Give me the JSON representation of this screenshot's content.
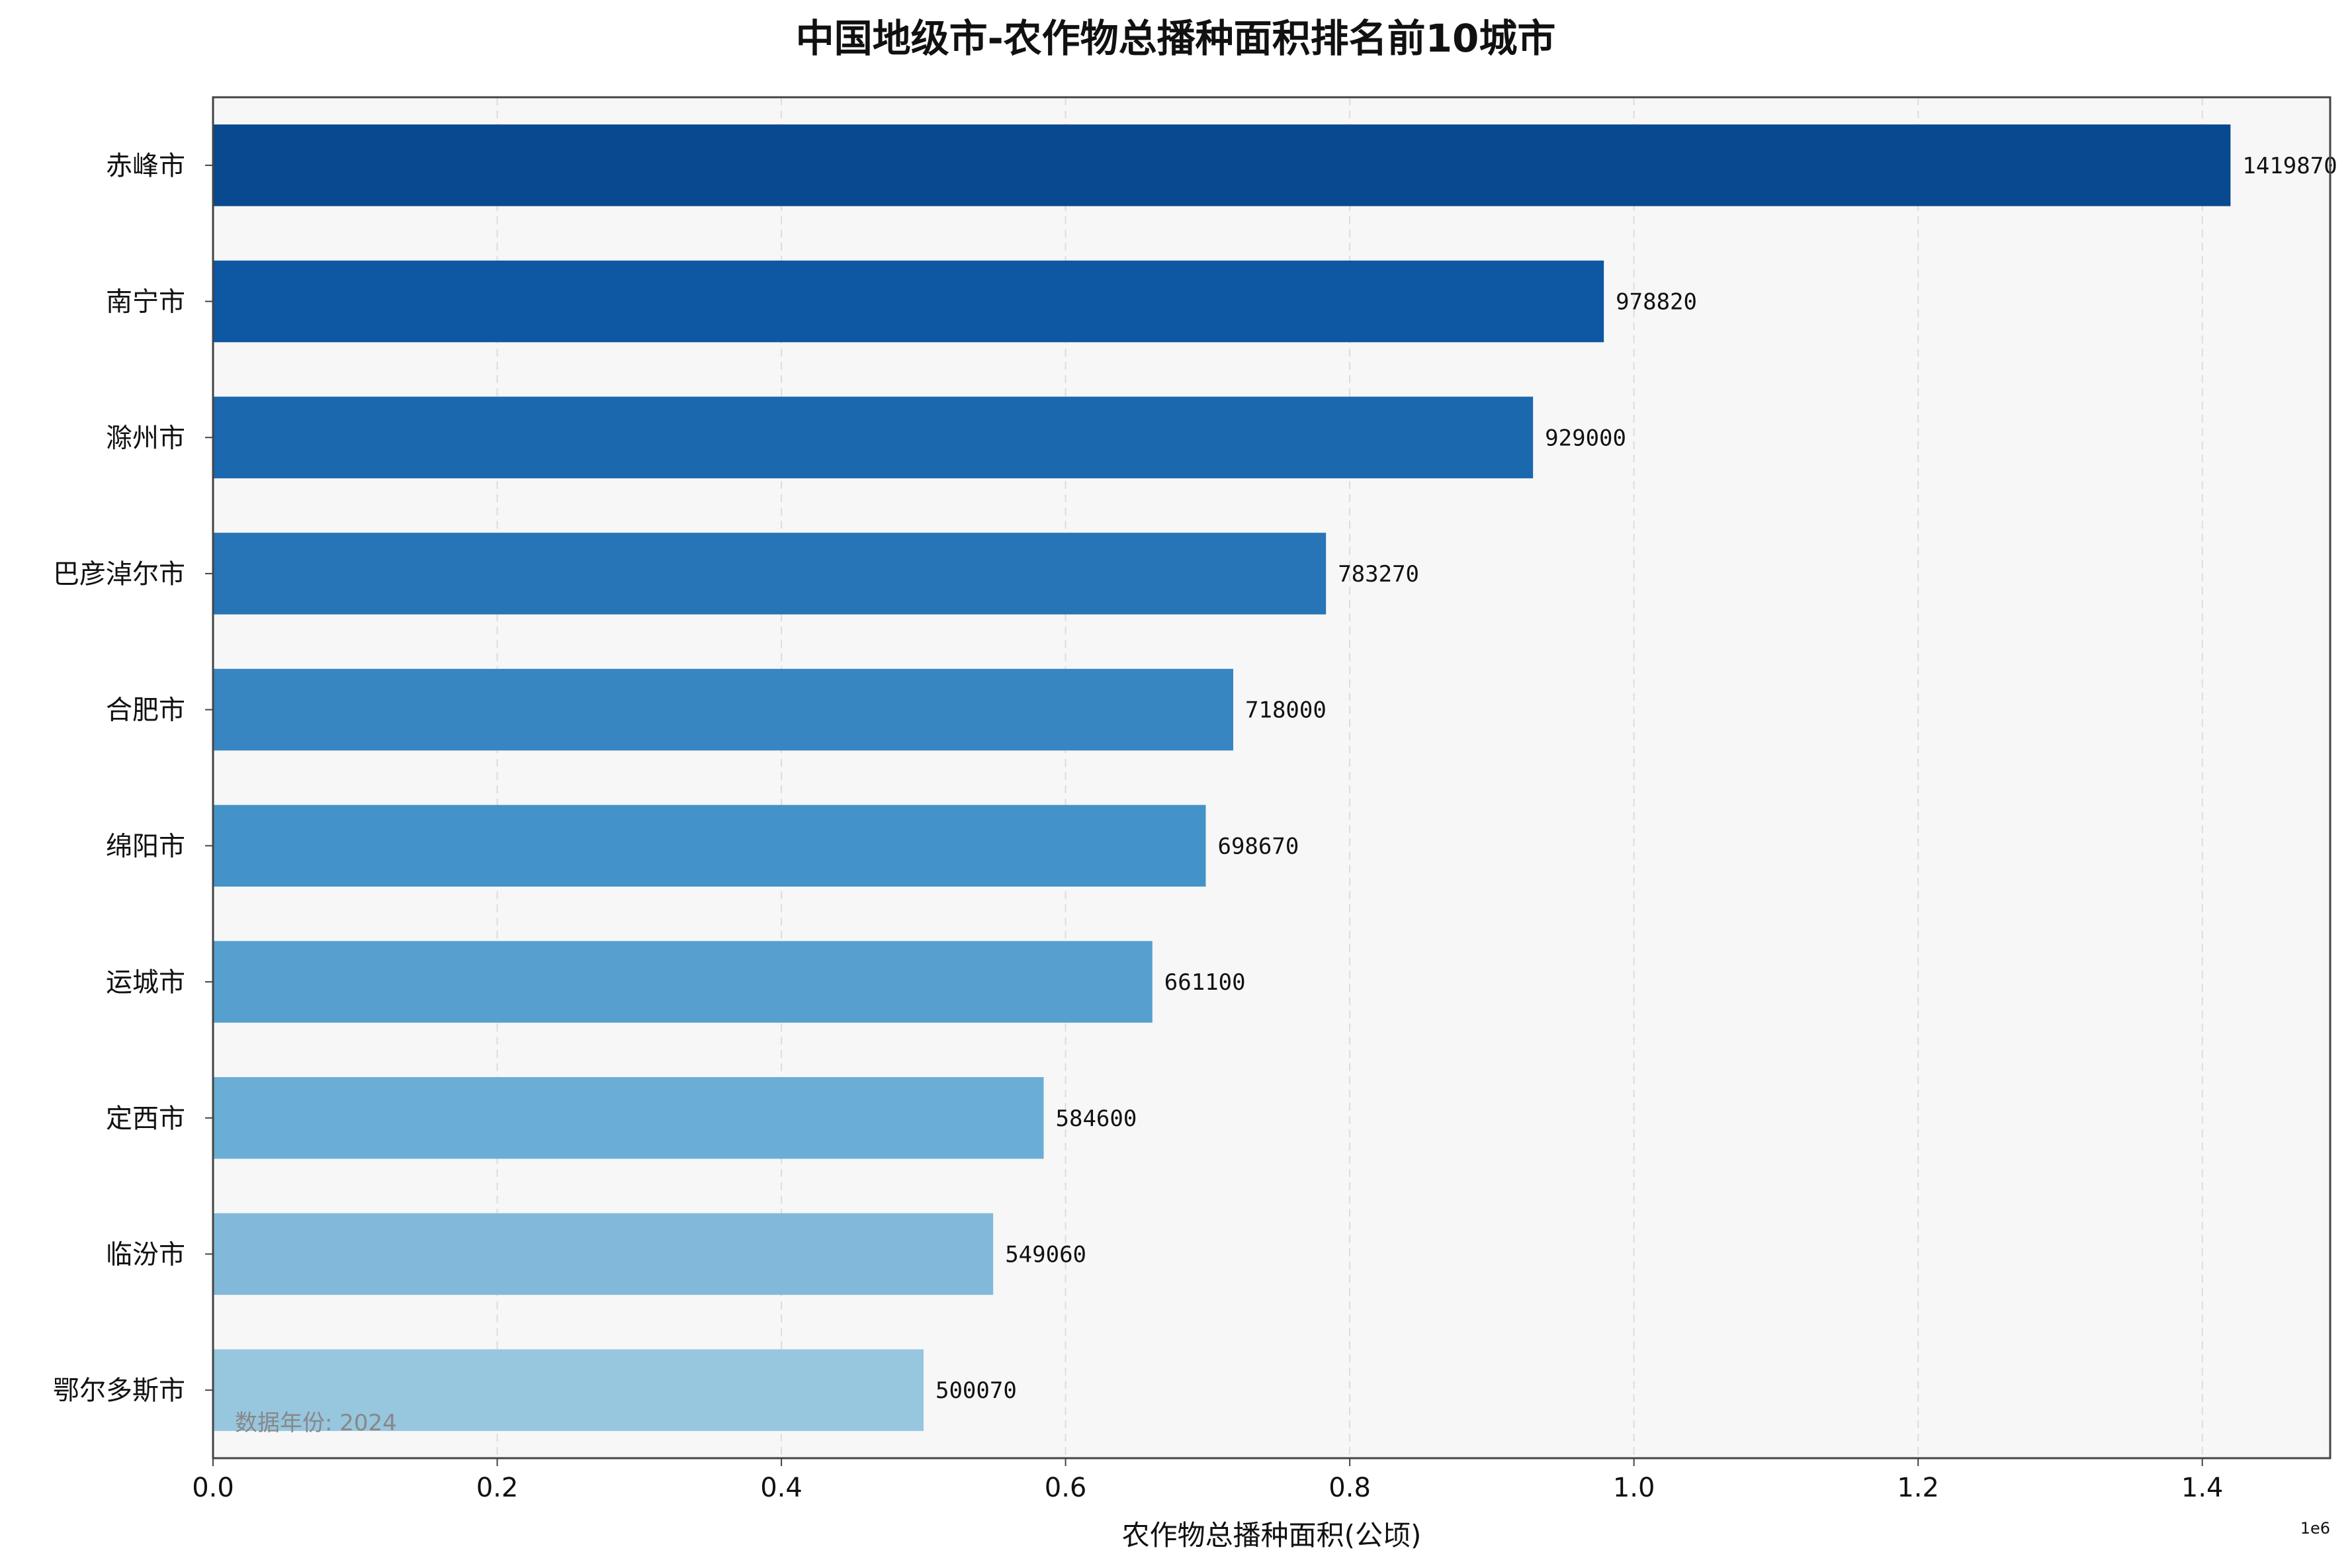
{
  "chart_data": {
    "type": "bar",
    "orientation": "horizontal",
    "title": "中国地级市-农作物总播种面积排名前10城市",
    "xlabel": "农作物总播种面积(公顷)",
    "ylabel": "",
    "x_scale_label": "1e6",
    "xlim": [
      0,
      1490000
    ],
    "x_ticks": [
      0,
      200000,
      400000,
      600000,
      800000,
      1000000,
      1200000,
      1400000
    ],
    "x_tick_labels": [
      "0.0",
      "0.2",
      "0.4",
      "0.6",
      "0.8",
      "1.0",
      "1.2",
      "1.4"
    ],
    "grid": "x-dashed",
    "categories": [
      "赤峰市",
      "南宁市",
      "滁州市",
      "巴彦淖尔市",
      "合肥市",
      "绵阳市",
      "运城市",
      "定西市",
      "临汾市",
      "鄂尔多斯市"
    ],
    "values": [
      1419870,
      978820,
      929000,
      783270,
      718000,
      698670,
      661100,
      584600,
      549060,
      500070
    ],
    "value_labels": [
      "1419870",
      "978820",
      "929000",
      "783270",
      "718000",
      "698670",
      "661100",
      "584600",
      "549060",
      "500070"
    ],
    "colors": [
      "#08498f",
      "#0e57a2",
      "#1b68ae",
      "#2774b7",
      "#3786c1",
      "#4493c8",
      "#56a0cf",
      "#6aaed6",
      "#82b9da",
      "#97c6df"
    ],
    "annotation": "数据年份: 2024"
  },
  "style": {
    "plot_background": "#f7f7f7",
    "frame_color": "#444444",
    "grid_color": "#dddddd"
  }
}
